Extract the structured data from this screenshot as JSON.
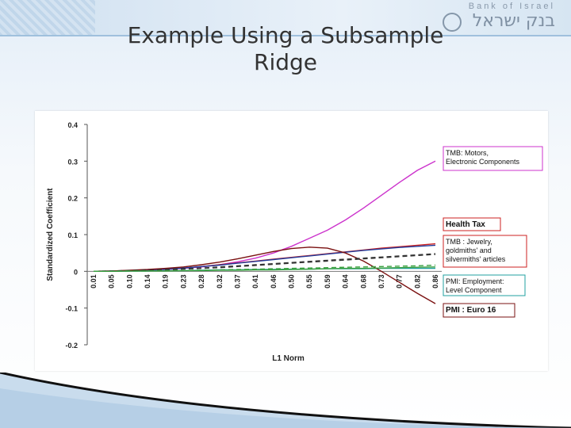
{
  "slide": {
    "title_line1": "Example Using a Subsample",
    "title_line2": "Ridge",
    "logo_text_en": "Bank of Israel",
    "logo_text_he": "בנק ישראל"
  },
  "colors": {
    "tmb_motors": "#cc33cc",
    "health_tax": "#cc2020",
    "tmb_jewelry": "#203a9a",
    "pmi_employment": "#20a0a0",
    "pmi_euro16": "#7a1010",
    "dashed_other": "#333333",
    "green_other": "#3aa040"
  },
  "chart_data": {
    "type": "line",
    "title": "",
    "xlabel": "L1 Norm",
    "ylabel": "Standardized Coefficient",
    "ylim": [
      -0.2,
      0.4
    ],
    "yticks": [
      0.4,
      0.3,
      0.2,
      0.1,
      0,
      -0.1,
      -0.2
    ],
    "ytick_labels": [
      "0.4",
      "0.3",
      "0.2",
      "0.1",
      "0",
      "-0.1",
      "-0.2"
    ],
    "x": [
      0.01,
      0.05,
      0.1,
      0.14,
      0.19,
      0.23,
      0.28,
      0.32,
      0.37,
      0.41,
      0.46,
      0.5,
      0.55,
      0.59,
      0.64,
      0.68,
      0.73,
      0.77,
      0.82,
      0.86
    ],
    "xtick_labels": [
      "0.01",
      "0.05",
      "0.10",
      "0.14",
      "0.19",
      "0.23",
      "0.28",
      "0.32",
      "0.37",
      "0.41",
      "0.46",
      "0.50",
      "0.55",
      "0.59",
      "0.64",
      "0.68",
      "0.73",
      "0.77",
      "0.82",
      "0.86"
    ],
    "grid": false,
    "series": [
      {
        "name": "TMB: Motors, Electronic Components",
        "color": "#cc33cc",
        "style": "solid",
        "values": [
          0.0,
          0.001,
          0.002,
          0.003,
          0.005,
          0.008,
          0.012,
          0.018,
          0.026,
          0.036,
          0.05,
          0.068,
          0.09,
          0.112,
          0.14,
          0.172,
          0.207,
          0.242,
          0.275,
          0.3
        ]
      },
      {
        "name": "Health Tax",
        "color": "#cc2020",
        "style": "solid",
        "values": [
          0.0,
          0.001,
          0.002,
          0.004,
          0.006,
          0.009,
          0.013,
          0.018,
          0.023,
          0.028,
          0.033,
          0.038,
          0.043,
          0.048,
          0.053,
          0.058,
          0.063,
          0.067,
          0.071,
          0.075
        ]
      },
      {
        "name": "TMB : Jewelry, goldmiths' and silvermiths' articles",
        "color": "#203a9a",
        "style": "solid",
        "values": [
          0.0,
          0.001,
          0.002,
          0.004,
          0.006,
          0.009,
          0.013,
          0.017,
          0.022,
          0.027,
          0.032,
          0.037,
          0.042,
          0.047,
          0.052,
          0.057,
          0.061,
          0.065,
          0.068,
          0.071
        ]
      },
      {
        "name": "PMI: Employment: Level Component",
        "color": "#20a0a0",
        "style": "solid",
        "values": [
          0.0,
          0.0,
          0.001,
          0.001,
          0.002,
          0.002,
          0.003,
          0.004,
          0.004,
          0.005,
          0.005,
          0.006,
          0.006,
          0.007,
          0.007,
          0.007,
          0.008,
          0.008,
          0.008,
          0.008
        ]
      },
      {
        "name": "PMI : Euro 16",
        "color": "#7a1010",
        "style": "solid",
        "values": [
          0.0,
          0.001,
          0.003,
          0.005,
          0.008,
          0.012,
          0.018,
          0.025,
          0.034,
          0.044,
          0.054,
          0.062,
          0.066,
          0.063,
          0.05,
          0.028,
          0.0,
          -0.03,
          -0.06,
          -0.088
        ]
      },
      {
        "name": "",
        "color": "#333333",
        "style": "dashed",
        "values": [
          0.0,
          0.001,
          0.002,
          0.003,
          0.005,
          0.007,
          0.009,
          0.012,
          0.015,
          0.018,
          0.021,
          0.024,
          0.027,
          0.03,
          0.033,
          0.036,
          0.039,
          0.042,
          0.045,
          0.048
        ]
      },
      {
        "name": "",
        "color": "#333333",
        "style": "dashed",
        "values": [
          0.0,
          0.001,
          0.002,
          0.003,
          0.004,
          0.006,
          0.008,
          0.01,
          0.013,
          0.016,
          0.019,
          0.022,
          0.025,
          0.028,
          0.031,
          0.034,
          0.037,
          0.04,
          0.043,
          0.046
        ]
      },
      {
        "name": "",
        "color": "#3aa040",
        "style": "dashed",
        "values": [
          0.0,
          0.0,
          0.001,
          0.001,
          0.002,
          0.002,
          0.003,
          0.004,
          0.005,
          0.006,
          0.007,
          0.008,
          0.009,
          0.01,
          0.011,
          0.012,
          0.013,
          0.014,
          0.015,
          0.017
        ]
      },
      {
        "name": "",
        "color": "#3aa040",
        "style": "solid",
        "values": [
          0.0,
          0.0,
          0.001,
          0.001,
          0.001,
          0.002,
          0.002,
          0.003,
          0.003,
          0.004,
          0.004,
          0.005,
          0.006,
          0.007,
          0.008,
          0.008,
          0.009,
          0.01,
          0.011,
          0.012
        ]
      }
    ],
    "annotations": [
      {
        "id": "tmb_motors",
        "lines": [
          "TMB: Motors,",
          "Electronic Components"
        ],
        "bold": false
      },
      {
        "id": "health_tax",
        "lines": [
          "Health Tax"
        ],
        "bold": true
      },
      {
        "id": "tmb_jewelry",
        "lines": [
          "TMB : Jewelry,",
          "goldmiths' and",
          "silvermiths' articles"
        ],
        "bold": false
      },
      {
        "id": "pmi_employment",
        "lines": [
          "PMI: Employment:",
          "Level Component"
        ],
        "bold": false
      },
      {
        "id": "pmi_euro16",
        "lines": [
          "PMI : Euro 16"
        ],
        "bold": true
      }
    ]
  }
}
